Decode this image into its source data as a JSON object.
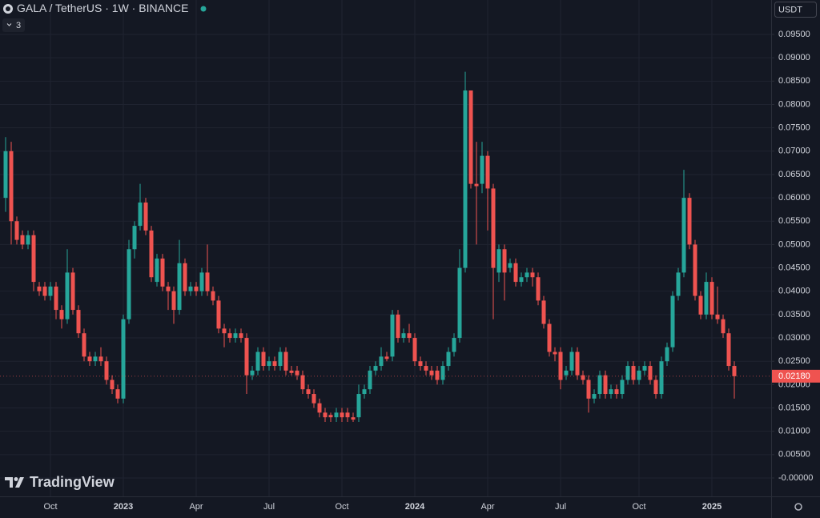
{
  "chart_data": {
    "type": "candlestick",
    "title": "GALA / TetherUS · 1W · BINANCE",
    "indicator_count": "3",
    "currency": "USDT",
    "watermark": "TradingView",
    "up_color": "#26a69a",
    "down_color": "#ef5350",
    "grid": true,
    "categories": [
      null,
      null,
      null,
      null,
      null,
      null,
      null,
      null,
      "Oct",
      null,
      null,
      null,
      null,
      null,
      null,
      null,
      null,
      null,
      null,
      null,
      null,
      "2023",
      null,
      null,
      null,
      null,
      null,
      null,
      null,
      null,
      null,
      null,
      null,
      null,
      "Apr",
      null,
      null,
      null,
      null,
      null,
      null,
      null,
      null,
      null,
      null,
      null,
      null,
      "Jul",
      null,
      null,
      null,
      null,
      null,
      null,
      null,
      null,
      null,
      null,
      null,
      null,
      "Oct",
      null,
      null,
      null,
      null,
      null,
      null,
      null,
      null,
      null,
      null,
      null,
      null,
      "2024",
      null,
      null,
      null,
      null,
      null,
      null,
      null,
      null,
      null,
      null,
      null,
      null,
      "Apr",
      null,
      null,
      null,
      null,
      null,
      null,
      null,
      null,
      null,
      null,
      null,
      null,
      "Jul",
      null,
      null,
      null,
      null,
      null,
      null,
      null,
      null,
      null,
      null,
      null,
      null,
      null,
      "Oct",
      null,
      null,
      null,
      null,
      null,
      null,
      null,
      null,
      null,
      null,
      null,
      null,
      "2025",
      null,
      null,
      null,
      null
    ],
    "open": [
      0.06,
      0.07,
      0.055,
      0.052,
      0.05,
      0.052,
      0.041,
      0.041,
      0.039,
      0.041,
      0.036,
      0.034,
      0.044,
      0.036,
      0.031,
      0.026,
      0.025,
      0.026,
      0.025,
      0.021,
      0.019,
      0.017,
      0.034,
      0.049,
      0.054,
      0.059,
      0.053,
      0.042,
      0.047,
      0.041,
      0.04,
      0.036,
      0.046,
      0.04,
      0.041,
      0.04,
      0.044,
      0.04,
      0.038,
      0.032,
      0.031,
      0.03,
      0.031,
      0.03,
      0.022,
      0.023,
      0.027,
      0.024,
      0.025,
      0.024,
      0.027,
      0.023,
      0.023,
      0.022,
      0.019,
      0.018,
      0.016,
      0.014,
      0.0135,
      0.013,
      0.014,
      0.014,
      0.013,
      0.013,
      0.018,
      0.019,
      0.023,
      0.024,
      0.026,
      0.026,
      0.035,
      0.03,
      0.031,
      0.03,
      0.025,
      0.024,
      0.023,
      0.023,
      0.021,
      0.024,
      0.027,
      0.03,
      0.045,
      0.083,
      0.063,
      0.063,
      0.069,
      0.062,
      0.044,
      0.049,
      0.045,
      0.046,
      0.042,
      0.043,
      0.044,
      0.043,
      0.038,
      0.033,
      0.027,
      0.027,
      0.022,
      0.023,
      0.027,
      0.022,
      0.021,
      0.017,
      0.018,
      0.022,
      0.018,
      0.019,
      0.018,
      0.021,
      0.024,
      0.021,
      0.023,
      0.024,
      0.021,
      0.018,
      0.025,
      0.028,
      0.039,
      0.044,
      0.06,
      0.05,
      0.039,
      0.035,
      0.042,
      0.035,
      0.034,
      0.031,
      0.024
    ],
    "high": [
      0.073,
      0.072,
      0.056,
      0.053,
      0.053,
      0.053,
      0.042,
      0.042,
      0.042,
      0.042,
      0.037,
      0.049,
      0.045,
      0.037,
      0.032,
      0.027,
      0.027,
      0.028,
      0.026,
      0.022,
      0.02,
      0.035,
      0.051,
      0.055,
      0.063,
      0.06,
      0.054,
      0.048,
      0.048,
      0.042,
      0.041,
      0.051,
      0.047,
      0.042,
      0.042,
      0.045,
      0.05,
      0.041,
      0.039,
      0.033,
      0.032,
      0.032,
      0.032,
      0.031,
      0.024,
      0.028,
      0.028,
      0.026,
      0.026,
      0.028,
      0.028,
      0.024,
      0.024,
      0.023,
      0.02,
      0.019,
      0.017,
      0.015,
      0.014,
      0.015,
      0.015,
      0.015,
      0.014,
      0.02,
      0.02,
      0.024,
      0.025,
      0.028,
      0.027,
      0.036,
      0.036,
      0.032,
      0.033,
      0.031,
      0.026,
      0.025,
      0.024,
      0.024,
      0.025,
      0.028,
      0.031,
      0.049,
      0.087,
      0.083,
      0.072,
      0.072,
      0.07,
      0.063,
      0.05,
      0.05,
      0.047,
      0.047,
      0.044,
      0.045,
      0.045,
      0.044,
      0.039,
      0.034,
      0.028,
      0.028,
      0.024,
      0.028,
      0.028,
      0.023,
      0.022,
      0.019,
      0.023,
      0.023,
      0.02,
      0.02,
      0.022,
      0.025,
      0.025,
      0.024,
      0.025,
      0.025,
      0.022,
      0.026,
      0.029,
      0.04,
      0.045,
      0.066,
      0.061,
      0.051,
      0.04,
      0.044,
      0.043,
      0.041,
      0.035,
      0.032,
      0.025
    ],
    "low": [
      0.057,
      0.05,
      0.05,
      0.049,
      0.049,
      0.04,
      0.039,
      0.038,
      0.038,
      0.034,
      0.032,
      0.033,
      0.035,
      0.03,
      0.025,
      0.024,
      0.024,
      0.024,
      0.02,
      0.018,
      0.016,
      0.016,
      0.033,
      0.047,
      0.053,
      0.052,
      0.042,
      0.041,
      0.04,
      0.036,
      0.033,
      0.035,
      0.039,
      0.039,
      0.039,
      0.039,
      0.039,
      0.037,
      0.031,
      0.028,
      0.029,
      0.029,
      0.029,
      0.018,
      0.021,
      0.022,
      0.023,
      0.023,
      0.023,
      0.023,
      0.022,
      0.022,
      0.021,
      0.018,
      0.017,
      0.015,
      0.013,
      0.012,
      0.012,
      0.012,
      0.012,
      0.012,
      0.012,
      0.012,
      0.017,
      0.018,
      0.022,
      0.023,
      0.025,
      0.025,
      0.029,
      0.029,
      0.029,
      0.024,
      0.023,
      0.022,
      0.021,
      0.02,
      0.02,
      0.023,
      0.026,
      0.029,
      0.044,
      0.062,
      0.05,
      0.061,
      0.053,
      0.034,
      0.042,
      0.038,
      0.044,
      0.041,
      0.041,
      0.042,
      0.041,
      0.037,
      0.032,
      0.026,
      0.025,
      0.019,
      0.021,
      0.022,
      0.021,
      0.02,
      0.014,
      0.016,
      0.017,
      0.017,
      0.017,
      0.017,
      0.017,
      0.02,
      0.02,
      0.02,
      0.022,
      0.02,
      0.017,
      0.017,
      0.024,
      0.027,
      0.038,
      0.043,
      0.049,
      0.038,
      0.034,
      0.034,
      0.034,
      0.033,
      0.03,
      0.023,
      0.017
    ],
    "close": [
      0.07,
      0.055,
      0.051,
      0.05,
      0.052,
      0.042,
      0.04,
      0.039,
      0.041,
      0.036,
      0.034,
      0.044,
      0.036,
      0.031,
      0.026,
      0.025,
      0.026,
      0.025,
      0.021,
      0.019,
      0.017,
      0.034,
      0.049,
      0.054,
      0.059,
      0.053,
      0.043,
      0.047,
      0.041,
      0.04,
      0.036,
      0.046,
      0.04,
      0.041,
      0.04,
      0.044,
      0.04,
      0.038,
      0.032,
      0.031,
      0.03,
      0.031,
      0.03,
      0.022,
      0.023,
      0.027,
      0.024,
      0.025,
      0.024,
      0.027,
      0.023,
      0.0225,
      0.022,
      0.019,
      0.018,
      0.016,
      0.014,
      0.013,
      0.013,
      0.014,
      0.013,
      0.013,
      0.0125,
      0.018,
      0.019,
      0.023,
      0.024,
      0.026,
      0.0255,
      0.035,
      0.03,
      0.031,
      0.03,
      0.025,
      0.024,
      0.023,
      0.022,
      0.021,
      0.024,
      0.027,
      0.03,
      0.045,
      0.083,
      0.063,
      0.0625,
      0.069,
      0.062,
      0.045,
      0.049,
      0.044,
      0.046,
      0.042,
      0.043,
      0.044,
      0.043,
      0.038,
      0.033,
      0.027,
      0.0265,
      0.021,
      0.023,
      0.027,
      0.022,
      0.021,
      0.017,
      0.018,
      0.022,
      0.018,
      0.019,
      0.018,
      0.021,
      0.024,
      0.021,
      0.023,
      0.024,
      0.021,
      0.018,
      0.025,
      0.028,
      0.039,
      0.044,
      0.06,
      0.05,
      0.039,
      0.035,
      0.042,
      0.035,
      0.034,
      0.031,
      0.024,
      0.0218
    ],
    "last_price": {
      "value": 0.0218,
      "label": "0.02180"
    },
    "ylim": [
      -0.002,
      0.1
    ],
    "yticks": [
      {
        "value": 0,
        "label": "-0.00000"
      },
      {
        "value": 0.005,
        "label": "0.00500"
      },
      {
        "value": 0.01,
        "label": "0.01000"
      },
      {
        "value": 0.015,
        "label": "0.01500"
      },
      {
        "value": 0.02,
        "label": "0.02000"
      },
      {
        "value": 0.025,
        "label": "0.02500"
      },
      {
        "value": 0.03,
        "label": "0.03000"
      },
      {
        "value": 0.035,
        "label": "0.03500"
      },
      {
        "value": 0.04,
        "label": "0.04000"
      },
      {
        "value": 0.045,
        "label": "0.04500"
      },
      {
        "value": 0.05,
        "label": "0.05000"
      },
      {
        "value": 0.055,
        "label": "0.05500"
      },
      {
        "value": 0.06,
        "label": "0.06000"
      },
      {
        "value": 0.065,
        "label": "0.06500"
      },
      {
        "value": 0.07,
        "label": "0.07000"
      },
      {
        "value": 0.075,
        "label": "0.07500"
      },
      {
        "value": 0.08,
        "label": "0.08000"
      },
      {
        "value": 0.085,
        "label": "0.08500"
      },
      {
        "value": 0.09,
        "label": "0.09000"
      },
      {
        "value": 0.095,
        "label": "0.09500"
      }
    ]
  }
}
